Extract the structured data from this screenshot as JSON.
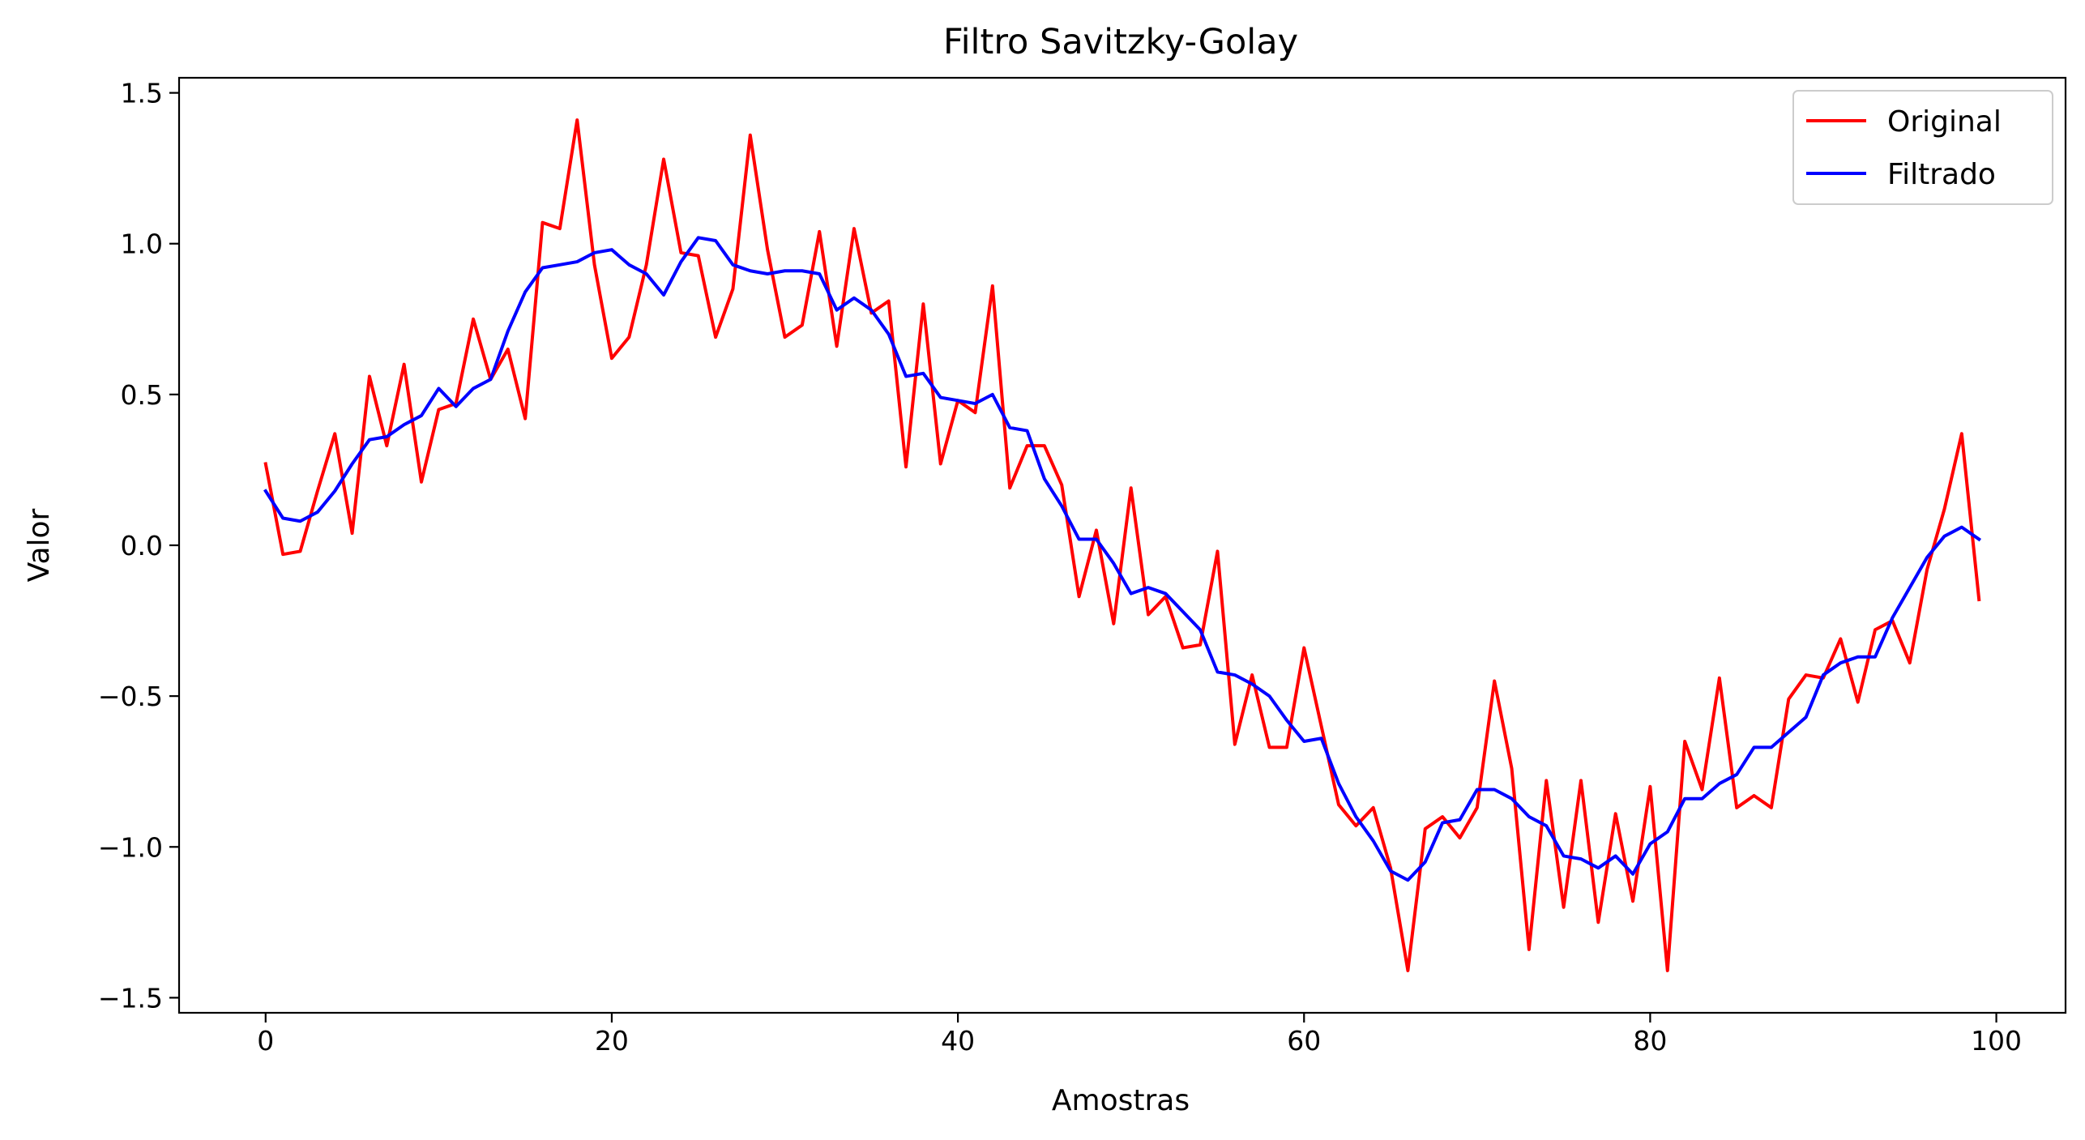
{
  "chart_data": {
    "type": "line",
    "title": "Filtro Savitzky-Golay",
    "xlabel": "Amostras",
    "ylabel": "Valor",
    "xlim": [
      -5,
      104
    ],
    "ylim": [
      -1.55,
      1.55
    ],
    "xticks": [
      0,
      20,
      40,
      60,
      80,
      100
    ],
    "xtick_labels": [
      "0",
      "20",
      "40",
      "60",
      "80",
      "100"
    ],
    "yticks": [
      -1.5,
      -1.0,
      -0.5,
      0.0,
      0.5,
      1.0,
      1.5
    ],
    "ytick_labels": [
      "−1.5",
      "−1.0",
      "−0.5",
      "0.0",
      "0.5",
      "1.0",
      "1.5"
    ],
    "grid": false,
    "legend_position": "top-right",
    "series": [
      {
        "name": "Original",
        "color": "#ff0000",
        "values": [
          0.27,
          -0.03,
          -0.02,
          0.18,
          0.37,
          0.04,
          0.56,
          0.33,
          0.6,
          0.21,
          0.45,
          0.47,
          0.75,
          0.55,
          0.65,
          0.42,
          1.07,
          1.05,
          1.41,
          0.93,
          0.62,
          0.69,
          0.93,
          1.28,
          0.97,
          0.96,
          0.69,
          0.85,
          1.36,
          0.98,
          0.69,
          0.73,
          1.04,
          0.66,
          1.05,
          0.77,
          0.81,
          0.26,
          0.8,
          0.27,
          0.48,
          0.44,
          0.86,
          0.19,
          0.33,
          0.33,
          0.2,
          -0.17,
          0.05,
          -0.26,
          0.19,
          -0.23,
          -0.17,
          -0.34,
          -0.33,
          -0.02,
          -0.66,
          -0.43,
          -0.67,
          -0.67,
          -0.34,
          -0.6,
          -0.86,
          -0.93,
          -0.87,
          -1.07,
          -1.41,
          -0.94,
          -0.9,
          -0.97,
          -0.87,
          -0.45,
          -0.74,
          -1.34,
          -0.78,
          -1.2,
          -0.78,
          -1.25,
          -0.89,
          -1.18,
          -0.8,
          -1.41,
          -0.65,
          -0.81,
          -0.44,
          -0.87,
          -0.83,
          -0.87,
          -0.51,
          -0.43,
          -0.44,
          -0.31,
          -0.52,
          -0.28,
          -0.25,
          -0.39,
          -0.08,
          0.12,
          0.37,
          -0.18
        ]
      },
      {
        "name": "Filtrado",
        "color": "#0000ff",
        "values": [
          0.18,
          0.09,
          0.08,
          0.11,
          0.18,
          0.27,
          0.35,
          0.36,
          0.4,
          0.43,
          0.52,
          0.46,
          0.52,
          0.55,
          0.71,
          0.84,
          0.92,
          0.93,
          0.94,
          0.97,
          0.98,
          0.93,
          0.9,
          0.83,
          0.94,
          1.02,
          1.01,
          0.93,
          0.91,
          0.9,
          0.91,
          0.91,
          0.9,
          0.78,
          0.82,
          0.78,
          0.7,
          0.56,
          0.57,
          0.49,
          0.48,
          0.47,
          0.5,
          0.39,
          0.38,
          0.22,
          0.13,
          0.02,
          0.02,
          -0.06,
          -0.16,
          -0.14,
          -0.16,
          -0.22,
          -0.28,
          -0.42,
          -0.43,
          -0.46,
          -0.5,
          -0.58,
          -0.65,
          -0.64,
          -0.79,
          -0.9,
          -0.98,
          -1.08,
          -1.11,
          -1.05,
          -0.92,
          -0.91,
          -0.81,
          -0.81,
          -0.84,
          -0.9,
          -0.93,
          -1.03,
          -1.04,
          -1.07,
          -1.03,
          -1.09,
          -0.99,
          -0.95,
          -0.84,
          -0.84,
          -0.79,
          -0.76,
          -0.67,
          -0.67,
          -0.62,
          -0.57,
          -0.43,
          -0.39,
          -0.37,
          -0.37,
          -0.24,
          -0.14,
          -0.04,
          0.03,
          0.06,
          0.02
        ]
      }
    ]
  }
}
